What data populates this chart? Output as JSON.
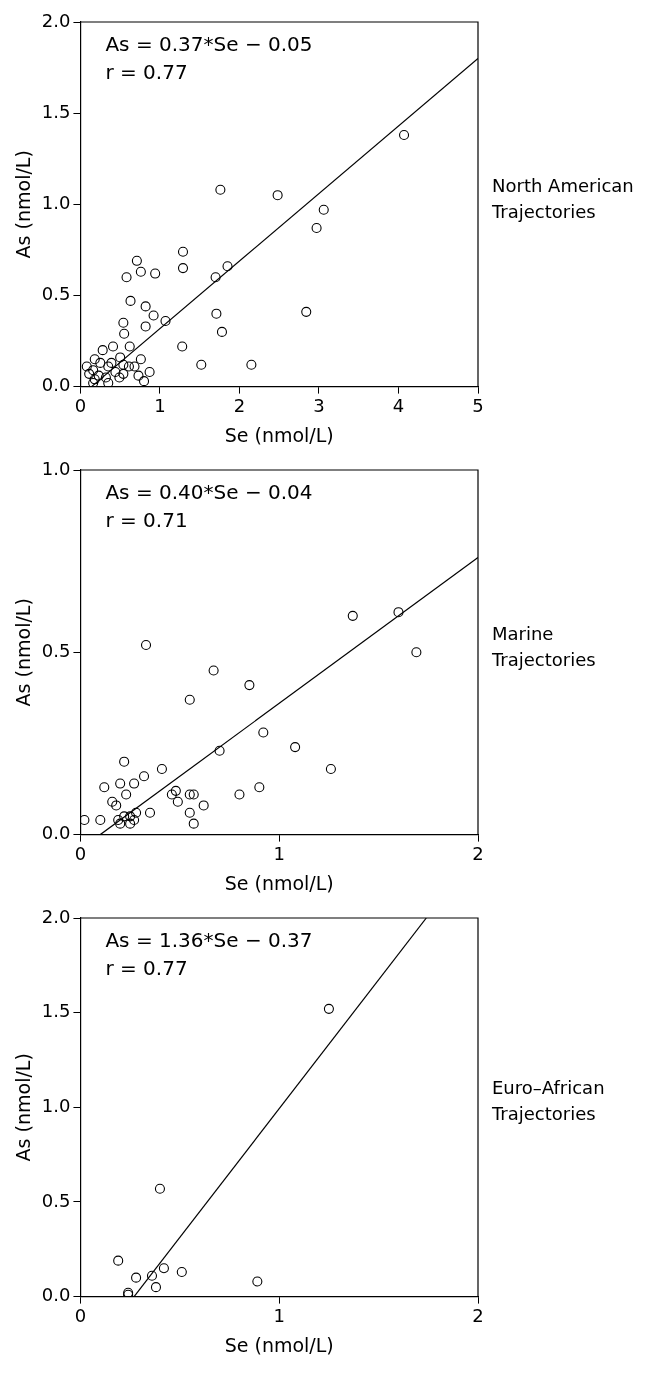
{
  "chart_data": [
    {
      "type": "scatter",
      "xlabel": "Se (nmol/L)",
      "ylabel": "As (nmol/L)",
      "annotations": [
        "As = 0.37*Se − 0.05",
        "r = 0.77",
        "North American Trajectories"
      ],
      "xlim": [
        0,
        5
      ],
      "xticks": [
        0,
        1,
        2,
        3,
        4,
        5
      ],
      "ylim": [
        0,
        2
      ],
      "yticks": [
        {
          "value": 0,
          "label": "0.0"
        },
        {
          "value": 0.5,
          "label": "0.5"
        },
        {
          "value": 1,
          "label": "1.0"
        },
        {
          "value": 1.5,
          "label": "1.5"
        },
        {
          "value": 2,
          "label": "2.0"
        }
      ],
      "series": [
        {
          "type": "scatter",
          "marker": "circle",
          "color": "#000000",
          "x": [
            1.76,
            2.48,
            3.06,
            2.97,
            4.07,
            2.84,
            1.29,
            1.29,
            0.71,
            0.76,
            0.94,
            0.58,
            1.7,
            1.85,
            0.63,
            0.82,
            0.92,
            1.07,
            1.71,
            1.78,
            0.82,
            0.54,
            0.55,
            1.28,
            1.52,
            2.15,
            0.62,
            0.5,
            0.76,
            0.87,
            0.28,
            0.41,
            0.08,
            0.16,
            0.18,
            0.25,
            0.35,
            0.39,
            0.44,
            0.54,
            0.61,
            0.68,
            0.54,
            0.23,
            0.32,
            0.16,
            0.35,
            0.49,
            0.18,
            0.73,
            0.8,
            0.11
          ],
          "values": [
            1.08,
            1.05,
            0.97,
            0.87,
            1.38,
            0.41,
            0.74,
            0.65,
            0.69,
            0.63,
            0.62,
            0.6,
            0.6,
            0.66,
            0.47,
            0.44,
            0.39,
            0.36,
            0.4,
            0.3,
            0.33,
            0.35,
            0.29,
            0.22,
            0.12,
            0.12,
            0.22,
            0.16,
            0.15,
            0.08,
            0.2,
            0.22,
            0.11,
            0.09,
            0.15,
            0.13,
            0.11,
            0.13,
            0.08,
            0.12,
            0.11,
            0.11,
            0.07,
            0.06,
            0.05,
            0.02,
            0.02,
            0.05,
            0.04,
            0.06,
            0.03,
            0.07
          ]
        },
        {
          "type": "line",
          "color": "#000000",
          "x": [
            0.14,
            5
          ],
          "values": [
            0,
            1.8
          ]
        }
      ]
    },
    {
      "type": "scatter",
      "xlabel": "Se (nmol/L)",
      "ylabel": "As (nmol/L)",
      "annotations": [
        "As = 0.40*Se − 0.04",
        "r = 0.71",
        "Marine Trajectories"
      ],
      "xlim": [
        0,
        2
      ],
      "xticks": [
        0,
        1,
        2
      ],
      "ylim": [
        0,
        1
      ],
      "yticks": [
        {
          "value": 0,
          "label": "0.0"
        },
        {
          "value": 0.5,
          "label": "0.5"
        },
        {
          "value": 1,
          "label": "1.0"
        }
      ],
      "series": [
        {
          "type": "scatter",
          "marker": "circle",
          "color": "#000000",
          "x": [
            1.37,
            1.6,
            1.69,
            0.33,
            0.67,
            0.85,
            0.55,
            0.92,
            1.08,
            0.7,
            1.26,
            0.22,
            0.41,
            0.32,
            0.27,
            0.2,
            0.12,
            0.23,
            0.16,
            0.18,
            0.48,
            0.46,
            0.49,
            0.55,
            0.57,
            0.62,
            0.9,
            0.8,
            0.55,
            0.57,
            0.35,
            0.02,
            0.1,
            0.19,
            0.2,
            0.22,
            0.25,
            0.28,
            0.25,
            0.27
          ],
          "values": [
            0.6,
            0.61,
            0.5,
            0.52,
            0.45,
            0.41,
            0.37,
            0.28,
            0.24,
            0.23,
            0.18,
            0.2,
            0.18,
            0.16,
            0.14,
            0.14,
            0.13,
            0.11,
            0.09,
            0.08,
            0.12,
            0.11,
            0.09,
            0.11,
            0.11,
            0.08,
            0.13,
            0.11,
            0.06,
            0.03,
            0.06,
            0.04,
            0.04,
            0.04,
            0.03,
            0.05,
            0.05,
            0.06,
            0.03,
            0.04
          ]
        },
        {
          "type": "line",
          "color": "#000000",
          "x": [
            0.1,
            2
          ],
          "values": [
            0,
            0.76
          ]
        }
      ]
    },
    {
      "type": "scatter",
      "xlabel": "Se (nmol/L)",
      "ylabel": "As (nmol/L)",
      "annotations": [
        "As = 1.36*Se − 0.37",
        "r = 0.77",
        "Euro–African Trajectories"
      ],
      "xlim": [
        0,
        2
      ],
      "xticks": [
        0,
        1,
        2
      ],
      "ylim": [
        0,
        2
      ],
      "yticks": [
        {
          "value": 0,
          "label": "0.0"
        },
        {
          "value": 0.5,
          "label": "0.5"
        },
        {
          "value": 1,
          "label": "1.0"
        },
        {
          "value": 1.5,
          "label": "1.5"
        },
        {
          "value": 2,
          "label": "2.0"
        }
      ],
      "series": [
        {
          "type": "scatter",
          "marker": "circle",
          "color": "#000000",
          "x": [
            1.25,
            0.4,
            0.19,
            0.28,
            0.42,
            0.36,
            0.51,
            0.38,
            0.24,
            0.24,
            0.89
          ],
          "values": [
            1.52,
            0.57,
            0.19,
            0.1,
            0.15,
            0.11,
            0.13,
            0.05,
            0.02,
            0.01,
            0.08
          ]
        },
        {
          "type": "line",
          "color": "#000000",
          "x": [
            0.27,
            1.74
          ],
          "values": [
            0,
            2
          ]
        }
      ]
    }
  ]
}
